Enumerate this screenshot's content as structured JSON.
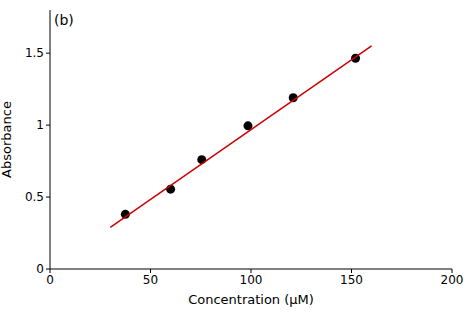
{
  "chart_data": {
    "type": "scatter",
    "title": "(b)",
    "x_label": "Concentration (μM)",
    "y_label": "Absorbance",
    "xlim": [
      0,
      200
    ],
    "xticks": [
      0,
      50,
      100,
      150,
      200
    ],
    "ylim": [
      0,
      1.8
    ],
    "yticks": [
      0,
      0.5,
      1,
      1.5
    ],
    "grid": false,
    "series": [
      {
        "type": "scatter",
        "color": "#000000",
        "marker": "circle",
        "x": [
          37.5,
          60,
          75.5,
          98.5,
          121,
          152
        ],
        "values": [
          0.38,
          0.555,
          0.76,
          0.995,
          1.19,
          1.465
        ]
      },
      {
        "type": "line",
        "color": "#cc0000",
        "line_style": "solid",
        "x": [
          30,
          160
        ],
        "values": [
          0.29,
          1.55
        ]
      }
    ]
  }
}
